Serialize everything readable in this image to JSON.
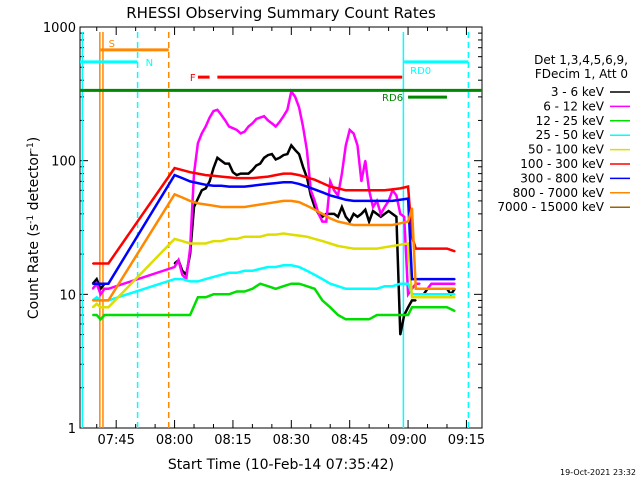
{
  "chart_data": {
    "type": "line",
    "title": "RHESSI Observing Summary Count Rates",
    "xlabel": "Start Time (10-Feb-14 07:35:42)",
    "ylabel": "Count Rate (s",
    "ylabel_sup": "-1",
    "ylabel_end": " detector",
    "ylabel_sup2": "-1",
    "ylabel_close": ")",
    "yscale": "log",
    "ylim": [
      1,
      1000
    ],
    "xlim_minutes": [
      455.7,
      559.0
    ],
    "x_ticks": [
      {
        "label": "07:45",
        "minute": 465
      },
      {
        "label": "08:00",
        "minute": 480
      },
      {
        "label": "08:15",
        "minute": 495
      },
      {
        "label": "08:30",
        "minute": 510
      },
      {
        "label": "08:45",
        "minute": 525
      },
      {
        "label": "09:00",
        "minute": 540
      },
      {
        "label": "09:15",
        "minute": 555
      }
    ],
    "y_ticks": [
      {
        "label": "1",
        "value": 1
      },
      {
        "label": "10",
        "value": 10
      },
      {
        "label": "100",
        "value": 100
      },
      {
        "label": "1000",
        "value": 1000
      }
    ],
    "legend_header": [
      "Det 1,3,4,5,6,9,",
      "FDecim 1, Att 0"
    ],
    "series": [
      {
        "name": "3 - 6 keV",
        "color": "#000000",
        "x": [
          459,
          460,
          461,
          462,
          463,
          476,
          477,
          480,
          481,
          482,
          483,
          484,
          485,
          486,
          487,
          488,
          489,
          490,
          491,
          492,
          493,
          494,
          495,
          496,
          497,
          498,
          499,
          500,
          501,
          502,
          503,
          504,
          505,
          506,
          507,
          508,
          509,
          510,
          511,
          512,
          513,
          514,
          515,
          516,
          517,
          518,
          519,
          520,
          521,
          522,
          523,
          524,
          525,
          526,
          527,
          528,
          529,
          530,
          531,
          532,
          533,
          534,
          535,
          536,
          537,
          538,
          539,
          540,
          541,
          542,
          543,
          544,
          545,
          546,
          547,
          548,
          549,
          550,
          551,
          552
        ],
        "values": [
          12,
          13,
          11,
          12,
          12,
          null,
          null,
          17,
          18,
          15,
          14,
          20,
          45,
          52,
          60,
          62,
          70,
          88,
          105,
          100,
          95,
          95,
          82,
          78,
          80,
          80,
          80,
          85,
          92,
          95,
          105,
          110,
          112,
          102,
          105,
          110,
          112,
          130,
          120,
          112,
          90,
          75,
          55,
          45,
          40,
          38,
          40,
          40,
          40,
          38,
          45,
          38,
          35,
          40,
          38,
          40,
          43,
          35,
          42,
          40,
          38,
          40,
          42,
          40,
          38,
          5,
          7,
          8,
          9,
          9,
          null,
          10,
          11,
          11,
          11,
          11,
          11,
          11,
          10,
          11
        ]
      },
      {
        "name": "6 - 12 keV",
        "color": "#ff00ff",
        "x": [
          459,
          460,
          461,
          462,
          463,
          480,
          481,
          482,
          483,
          484,
          485,
          486,
          487,
          488,
          489,
          490,
          491,
          492,
          493,
          494,
          495,
          496,
          497,
          498,
          499,
          500,
          501,
          502,
          503,
          504,
          505,
          506,
          507,
          508,
          509,
          510,
          511,
          512,
          513,
          514,
          515,
          516,
          517,
          518,
          519,
          520,
          521,
          522,
          523,
          524,
          525,
          526,
          527,
          528,
          529,
          530,
          531,
          532,
          533,
          534,
          535,
          536,
          537,
          538,
          539,
          540,
          541,
          542,
          543,
          544,
          545,
          546,
          547,
          548,
          549,
          550,
          551,
          552
        ],
        "values": [
          11,
          12,
          10,
          11,
          11,
          16,
          18,
          14,
          13,
          22,
          80,
          135,
          160,
          180,
          210,
          235,
          240,
          220,
          200,
          180,
          175,
          170,
          160,
          165,
          180,
          190,
          205,
          210,
          215,
          200,
          190,
          180,
          195,
          215,
          240,
          330,
          300,
          250,
          180,
          120,
          60,
          50,
          40,
          35,
          35,
          70,
          60,
          55,
          80,
          130,
          170,
          160,
          130,
          70,
          100,
          60,
          45,
          50,
          40,
          45,
          50,
          60,
          55,
          40,
          38,
          10,
          11,
          12,
          12,
          null,
          11,
          12,
          12,
          12,
          12,
          12,
          12,
          12
        ]
      },
      {
        "name": "12 - 25 keV",
        "color": "#00dd00",
        "x": [
          459,
          460,
          461,
          462,
          463,
          480,
          482,
          484,
          486,
          488,
          490,
          492,
          494,
          496,
          498,
          500,
          502,
          504,
          506,
          508,
          510,
          512,
          514,
          516,
          518,
          520,
          522,
          524,
          526,
          528,
          530,
          532,
          534,
          536,
          538,
          540,
          541,
          542,
          544,
          546,
          548,
          550,
          552
        ],
        "values": [
          7,
          7,
          6.5,
          7,
          7,
          7,
          7,
          7,
          9.5,
          9.5,
          10,
          10,
          10,
          10.5,
          10.5,
          11,
          12,
          11.5,
          11,
          11.5,
          12,
          12,
          11.5,
          11,
          9,
          8,
          7,
          6.5,
          6.5,
          6.5,
          6.5,
          7,
          7,
          7,
          7,
          7,
          8,
          8,
          8,
          8,
          8,
          8,
          7.5
        ]
      },
      {
        "name": "25 - 50 keV",
        "color": "#00ffff",
        "x": [
          459,
          460,
          461,
          462,
          463,
          480,
          482,
          484,
          486,
          488,
          490,
          492,
          494,
          496,
          498,
          500,
          502,
          504,
          506,
          508,
          510,
          512,
          514,
          516,
          518,
          520,
          522,
          524,
          526,
          528,
          530,
          532,
          534,
          536,
          538,
          540,
          541,
          542,
          544,
          546,
          548,
          550,
          552
        ],
        "values": [
          9,
          9.5,
          9,
          9,
          9,
          13,
          13,
          12.5,
          12.5,
          13,
          13.5,
          14,
          14.5,
          14.5,
          15,
          15,
          15.5,
          16,
          16,
          16.5,
          16.5,
          16,
          15,
          14,
          13,
          12,
          11.5,
          11,
          11,
          11,
          11,
          11,
          11.5,
          11.5,
          12,
          12,
          10,
          10,
          10,
          10,
          10,
          10,
          10
        ]
      },
      {
        "name": "50 - 100 keV",
        "color": "#dddd00",
        "x": [
          459,
          460,
          461,
          462,
          463,
          480,
          482,
          484,
          486,
          488,
          490,
          492,
          494,
          496,
          498,
          500,
          502,
          504,
          506,
          508,
          510,
          512,
          514,
          516,
          518,
          520,
          522,
          524,
          526,
          528,
          530,
          532,
          534,
          536,
          538,
          540,
          541,
          542,
          544,
          546,
          548,
          550,
          552
        ],
        "values": [
          8,
          8.5,
          8,
          8,
          8,
          26,
          25,
          24,
          24,
          24,
          25,
          25,
          26,
          26,
          27,
          27,
          27,
          28,
          28,
          28.5,
          28,
          27.5,
          27,
          26,
          25,
          24,
          23,
          22.5,
          22,
          22,
          22,
          22,
          22.5,
          23,
          23.5,
          24,
          9.5,
          9.5,
          9.5,
          9.5,
          9.5,
          9.5,
          9.5
        ]
      },
      {
        "name": "100 - 300 keV",
        "color": "#ff0000",
        "x": [
          459,
          460,
          461,
          462,
          463,
          480,
          482,
          484,
          486,
          488,
          490,
          492,
          494,
          496,
          498,
          500,
          502,
          504,
          506,
          508,
          510,
          512,
          514,
          516,
          518,
          520,
          522,
          524,
          526,
          528,
          530,
          532,
          534,
          536,
          538,
          540,
          541,
          542,
          544,
          546,
          548,
          550,
          552
        ],
        "values": [
          17,
          17,
          17,
          17,
          17,
          88,
          85,
          82,
          80,
          78,
          77,
          76,
          75,
          74,
          74,
          74,
          75,
          76,
          78,
          80,
          80,
          78,
          75,
          72,
          68,
          64,
          62,
          60,
          60,
          60,
          60,
          60,
          60,
          61,
          62,
          64,
          27,
          22,
          22,
          22,
          22,
          22,
          21
        ]
      },
      {
        "name": "300 - 800 keV",
        "color": "#0000ff",
        "x": [
          459,
          460,
          461,
          462,
          463,
          480,
          482,
          484,
          486,
          488,
          490,
          492,
          494,
          496,
          498,
          500,
          502,
          504,
          506,
          508,
          510,
          512,
          514,
          516,
          518,
          520,
          522,
          524,
          526,
          528,
          530,
          532,
          534,
          536,
          538,
          540,
          541,
          542,
          544,
          546,
          548,
          550,
          552
        ],
        "values": [
          12,
          12,
          12,
          12,
          12,
          78,
          74,
          70,
          68,
          66,
          65,
          65,
          64,
          64,
          64,
          65,
          66,
          67,
          68,
          69,
          69,
          67,
          64,
          61,
          58,
          55,
          53,
          51,
          50,
          50,
          50,
          50,
          50,
          50,
          51,
          52,
          13,
          13,
          13,
          13,
          13,
          13,
          13
        ]
      },
      {
        "name": "800 - 7000 keV",
        "color": "#ff8800",
        "x": [
          459,
          460,
          461,
          462,
          463,
          480,
          482,
          484,
          486,
          488,
          490,
          492,
          494,
          496,
          498,
          500,
          502,
          504,
          506,
          508,
          510,
          512,
          514,
          516,
          518,
          520,
          522,
          524,
          526,
          528,
          530,
          532,
          534,
          536,
          538,
          540,
          541,
          542,
          544,
          546,
          548,
          550,
          552
        ],
        "values": [
          9,
          9,
          9,
          9,
          9,
          56,
          53,
          50,
          48,
          47,
          46,
          45,
          45,
          45,
          45,
          46,
          47,
          48,
          49,
          50,
          50,
          49,
          46,
          43,
          40,
          37,
          35,
          34,
          33,
          33,
          33,
          33,
          33,
          33,
          34,
          35,
          44,
          11,
          11,
          11,
          11,
          11,
          11
        ]
      },
      {
        "name": "7000 - 15000 keV",
        "color": "#996600",
        "x": [],
        "values": []
      }
    ],
    "state_bars": [
      {
        "label": "S",
        "color": "#ff8800",
        "y_frac": 0.057,
        "x_from": 461,
        "x_to": 478.5
      },
      {
        "label": "N",
        "color": "#00ffff",
        "y_frac": 0.087,
        "x_from": 455.7,
        "x_to": 470.5
      },
      {
        "label": "F",
        "color": "#ff0000",
        "y_frac": 0.125,
        "x_from": 486,
        "x_to": 489
      },
      {
        "label": "",
        "color": "#ff0000",
        "y_frac": 0.125,
        "x_from": 491,
        "x_to": 538.5
      },
      {
        "label": "",
        "color": "#008800",
        "y_frac": 0.158,
        "x_from": 455.7,
        "x_to": 559
      },
      {
        "label": "RD0",
        "color": "#00ffff",
        "y_frac": 0.087,
        "x_from": 539,
        "x_to": 555.5
      },
      {
        "label": "RD6",
        "color": "#008800",
        "y_frac": 0.175,
        "x_from": 540,
        "x_to": 550
      }
    ],
    "state_labels": {
      "S": "S",
      "N": "N",
      "F": "F",
      "RD0": "RD0",
      "RD6": "RD6"
    }
  },
  "footer": {
    "timestamp": "19-Oct-2021 23:32"
  }
}
